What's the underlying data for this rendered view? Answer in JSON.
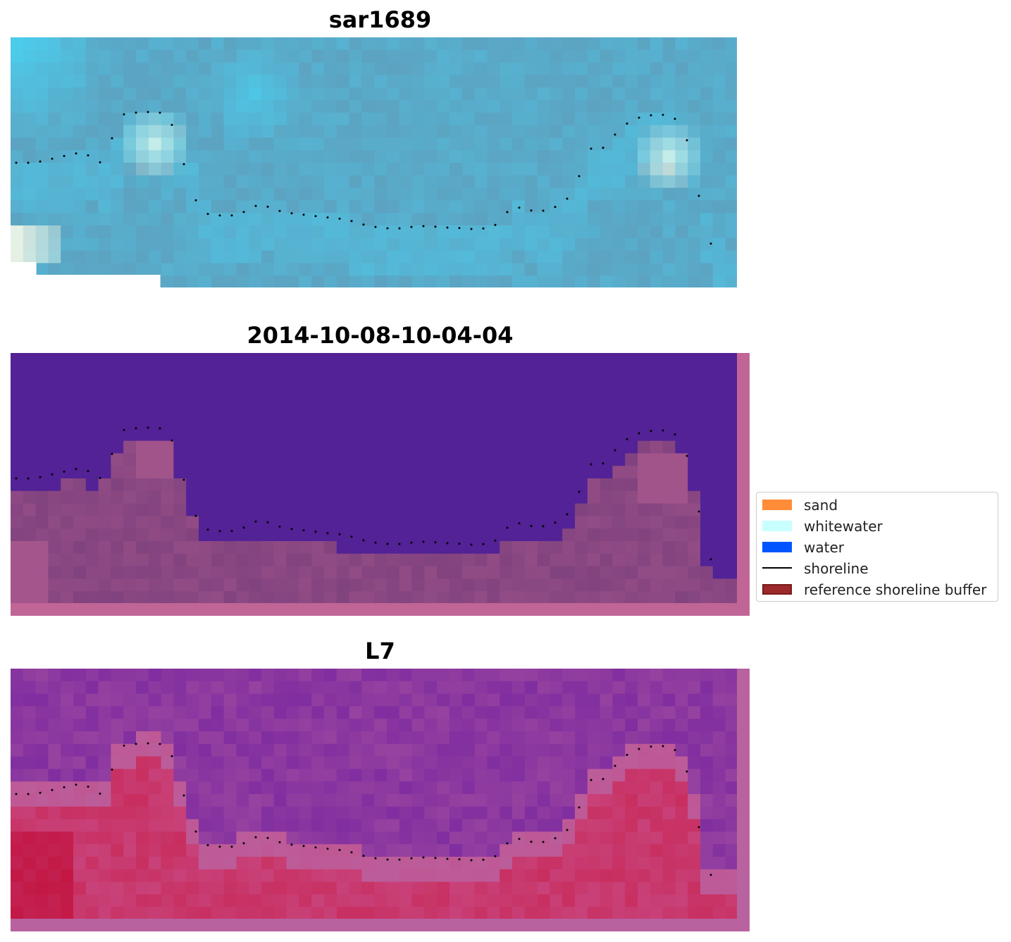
{
  "panels": [
    {
      "title": "sar1689",
      "kind": "rgb-image"
    },
    {
      "title": "2014-10-08-10-04-04",
      "kind": "classified-image"
    },
    {
      "title": "L7",
      "kind": "mndwi-image"
    }
  ],
  "legend": {
    "placement": "right-middle",
    "items": [
      {
        "label": "sand",
        "type": "patch",
        "color": "#ff8c38"
      },
      {
        "label": "whitewater",
        "type": "patch",
        "color": "#c8ffff"
      },
      {
        "label": "water",
        "type": "patch",
        "color": "#0055ff"
      },
      {
        "label": "shoreline",
        "type": "line",
        "color": "#000000"
      },
      {
        "label": "reference shoreline buffer",
        "type": "patch",
        "color": "#9c2a2a",
        "edge": "#7a1a1a"
      }
    ]
  },
  "colors": {
    "rgb_base": "#5f9ab8",
    "rgb_bright": "#4ad4f4",
    "rgb_white": "#fdfde8",
    "classified_water": "#522296",
    "classified_buffer": "#c06596",
    "classified_land": "#7a3f7c",
    "l7_water": "#7a28a0",
    "l7_land": "#c84a84",
    "l7_edge": "#b862a0",
    "shoreline": "#000000"
  }
}
